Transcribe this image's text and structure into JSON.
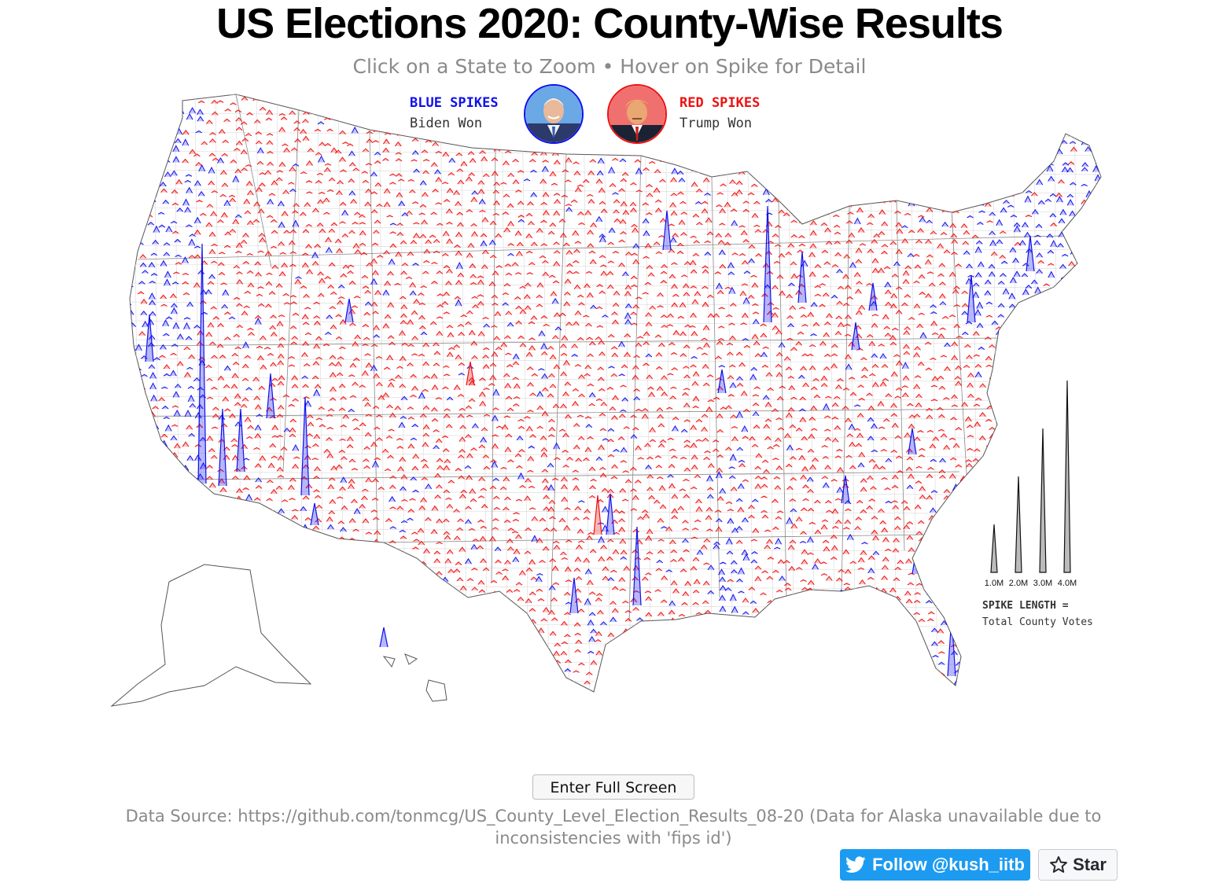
{
  "header": {
    "title": "US Elections 2020: County-Wise Results",
    "subtitle": "Click on a State to Zoom • Hover on Spike for Detail"
  },
  "legend": {
    "blue_head": "BLUE SPIKES",
    "blue_sub": "Biden Won",
    "red_head": "RED SPIKES",
    "red_sub": "Trump Won",
    "blue_color": "#1010ee",
    "red_color": "#ee1111"
  },
  "scale": {
    "values_millions": [
      1.0,
      2.0,
      3.0,
      4.0
    ],
    "tick_labels": [
      "1.0M",
      "2.0M",
      "3.0M",
      "4.0M"
    ],
    "note_head": "SPIKE LENGTH =",
    "note_sub": "Total County Votes"
  },
  "controls": {
    "fullscreen_label": "Enter Full Screen",
    "follow_label": "Follow @kush_iitb",
    "star_label": "Star"
  },
  "footer": {
    "source": "Data Source: https://github.com/tonmcg/US_County_Level_Election_Results_08-20 (Data for Alaska unavailable due to inconsistencies with 'fips id')"
  },
  "icons": [
    "twitter-bird-icon",
    "star-icon",
    "biden-portrait",
    "trump-portrait"
  ]
}
